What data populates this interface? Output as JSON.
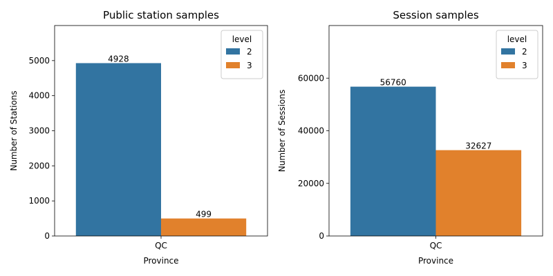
{
  "chart_data": [
    {
      "type": "bar",
      "title": "Public station samples",
      "xlabel": "Province",
      "ylabel": "Number of Stations",
      "categories": [
        "QC"
      ],
      "ylim": [
        0,
        6000
      ],
      "yticks": [
        0,
        1000,
        2000,
        3000,
        4000,
        5000
      ],
      "legend": {
        "title": "level",
        "position": "top-right"
      },
      "series": [
        {
          "name": "2",
          "color": "#3274a1",
          "values": [
            4928
          ],
          "labels": [
            "4928"
          ]
        },
        {
          "name": "3",
          "color": "#e1812c",
          "values": [
            499
          ],
          "labels": [
            "499"
          ]
        }
      ]
    },
    {
      "type": "bar",
      "title": "Session samples",
      "xlabel": "Province",
      "ylabel": "Number of Sessions",
      "categories": [
        "QC"
      ],
      "ylim": [
        0,
        80000
      ],
      "yticks": [
        0,
        20000,
        40000,
        60000
      ],
      "legend": {
        "title": "level",
        "position": "top-right"
      },
      "series": [
        {
          "name": "2",
          "color": "#3274a1",
          "values": [
            56760
          ],
          "labels": [
            "56760"
          ]
        },
        {
          "name": "3",
          "color": "#e1812c",
          "values": [
            32627
          ],
          "labels": [
            "32627"
          ]
        }
      ]
    }
  ]
}
